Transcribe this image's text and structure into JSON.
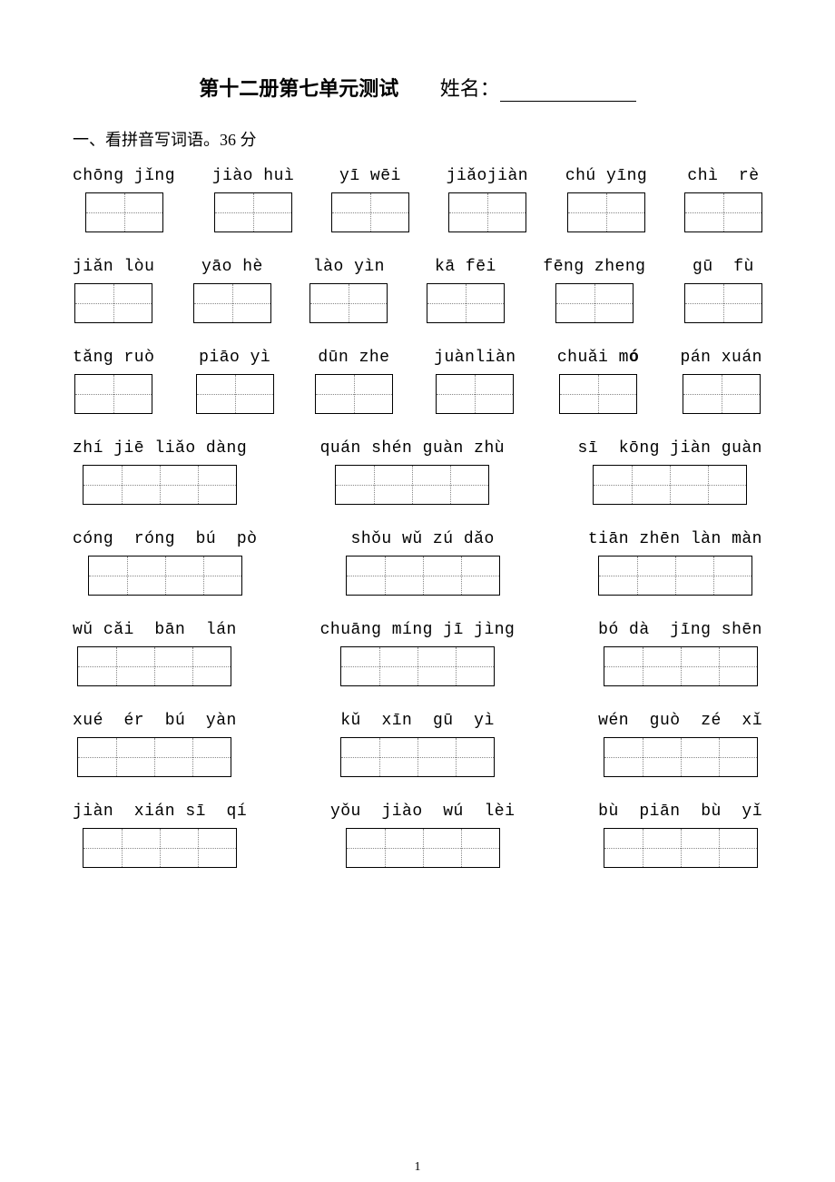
{
  "title": "第十二册第七单元测试",
  "name_label": "姓名：",
  "section1_heading": "一、看拼音写词语。36 分",
  "page_number": "1",
  "rows": [
    {
      "groups": [
        {
          "pinyin": "chōng jǐng",
          "boxsets": [
            2
          ]
        },
        {
          "pinyin": "jiào huì",
          "boxsets": [
            2
          ]
        },
        {
          "pinyin": "yī wēi",
          "boxsets": [
            2
          ]
        },
        {
          "pinyin": "jiǎojiàn",
          "boxsets": [
            2
          ]
        },
        {
          "pinyin": "chú yīng",
          "boxsets": [
            2
          ]
        },
        {
          "pinyin": "chì  rè",
          "boxsets": [
            2
          ]
        }
      ]
    },
    {
      "groups": [
        {
          "pinyin": "jiǎn lòu",
          "boxsets": [
            2
          ]
        },
        {
          "pinyin": "yāo hè",
          "boxsets": [
            2
          ]
        },
        {
          "pinyin": "lào yìn",
          "boxsets": [
            2
          ]
        },
        {
          "pinyin": "kā fēi",
          "boxsets": [
            2
          ]
        },
        {
          "pinyin": "fēng zheng",
          "boxsets": [
            2
          ]
        },
        {
          "pinyin": "gū  fù",
          "boxsets": [
            2
          ]
        }
      ]
    },
    {
      "groups": [
        {
          "pinyin": "tǎng ruò",
          "boxsets": [
            2
          ]
        },
        {
          "pinyin": "piāo yì",
          "boxsets": [
            2
          ]
        },
        {
          "pinyin": "dūn zhe",
          "boxsets": [
            2
          ]
        },
        {
          "pinyin": "juànliàn",
          "boxsets": [
            2
          ]
        },
        {
          "pinyin": "chuǎi mó",
          "bold_indices": [
            7,
            8
          ],
          "boxsets": [
            2
          ]
        },
        {
          "pinyin": "pán xuán",
          "boxsets": [
            2
          ]
        }
      ]
    },
    {
      "groups": [
        {
          "pinyin": "zhí jiē liǎo dàng",
          "boxsets": [
            4
          ]
        },
        {
          "pinyin": "quán shén guàn zhù",
          "boxsets": [
            4
          ]
        },
        {
          "pinyin": "sī  kōng jiàn guàn",
          "boxsets": [
            4
          ]
        }
      ]
    },
    {
      "groups": [
        {
          "pinyin": "cóng  róng  bú  pò",
          "boxsets": [
            4
          ]
        },
        {
          "pinyin": "shǒu wǔ zú dǎo",
          "boxsets": [
            4
          ]
        },
        {
          "pinyin": "tiān zhēn làn màn",
          "boxsets": [
            4
          ]
        }
      ]
    },
    {
      "groups": [
        {
          "pinyin": "wǔ cǎi  bān  lán",
          "boxsets": [
            4
          ]
        },
        {
          "pinyin": "chuāng míng jī jìng",
          "boxsets": [
            4
          ]
        },
        {
          "pinyin": "bó dà  jīng shēn",
          "boxsets": [
            4
          ]
        }
      ]
    },
    {
      "groups": [
        {
          "pinyin": "xué  ér  bú  yàn",
          "boxsets": [
            4
          ]
        },
        {
          "pinyin": "kǔ  xīn  gū  yì",
          "boxsets": [
            4
          ]
        },
        {
          "pinyin": "wén  guò  zé  xǐ",
          "boxsets": [
            4
          ]
        }
      ]
    },
    {
      "groups": [
        {
          "pinyin": "jiàn  xián sī  qí",
          "boxsets": [
            4
          ]
        },
        {
          "pinyin": "yǒu  jiào  wú  lèi",
          "boxsets": [
            4
          ]
        },
        {
          "pinyin": "bù  piān  bù  yǐ",
          "boxsets": [
            4
          ]
        }
      ]
    }
  ]
}
